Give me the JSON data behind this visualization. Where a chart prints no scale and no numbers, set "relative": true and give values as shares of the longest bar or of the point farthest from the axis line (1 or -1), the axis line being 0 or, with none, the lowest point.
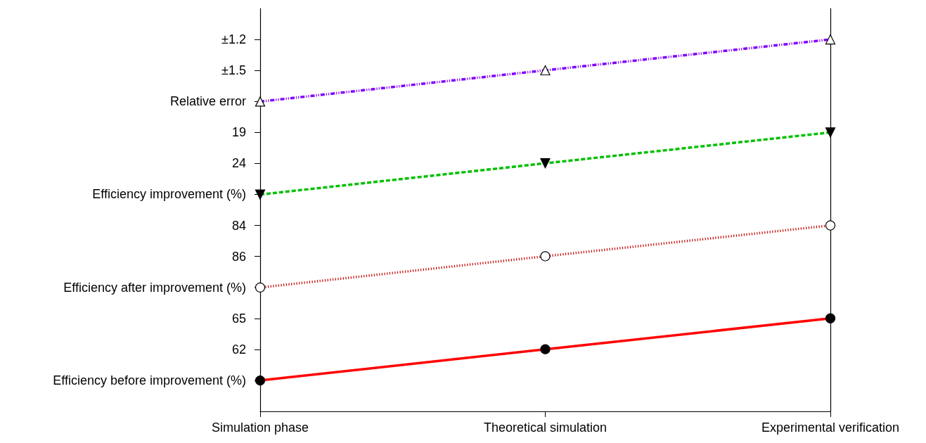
{
  "chart_data": {
    "type": "line",
    "categories": [
      "Simulation phase",
      "Theoretical simulation",
      "Experimental verification"
    ],
    "relative": true,
    "grid": false,
    "annotations": [
      "Efficiency before improvement (%)",
      "62",
      "65",
      "Efficiency after improvement (%)",
      "86",
      "84",
      "Efficiency improvement (%)",
      "24",
      "19",
      "Relative error",
      "±1.5",
      "±1.2"
    ],
    "series": [
      {
        "color": "#ff0000",
        "values": [
          0.083,
          0.167,
          0.25
        ],
        "marker": "circle",
        "colors": [
          "#000000",
          "#000000",
          "#000000"
        ],
        "line_style": "solid"
      },
      {
        "color": "#c00000",
        "values": [
          0.333,
          0.417,
          0.5
        ],
        "marker": "circle",
        "colors": [
          "#ffffff",
          "#ffffff",
          "#ffffff"
        ],
        "line_style": "dotted"
      },
      {
        "color": "#00c000",
        "values": [
          0.583,
          0.667,
          0.75
        ],
        "marker": "triangle-down",
        "colors": [
          "#000000",
          "#000000",
          "#000000"
        ],
        "line_style": "dashed"
      },
      {
        "color": "#8000ff",
        "values": [
          0.833,
          0.917,
          1
        ],
        "marker": "triangle",
        "colors": [
          "#ffffff",
          "#ffffff",
          "#ffffff"
        ],
        "line_style": "dashdotdot"
      }
    ]
  }
}
